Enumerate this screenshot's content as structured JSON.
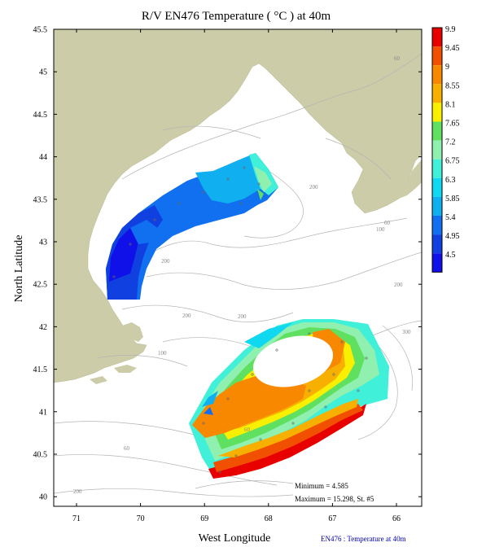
{
  "title": "R/V EN476 Temperature ( °C ) at 40m",
  "axes": {
    "xlabel": "West Longitude",
    "ylabel": "North Latitude",
    "x_ticks": [
      "71",
      "70",
      "69",
      "68",
      "67",
      "66"
    ],
    "y_ticks": [
      "45.5",
      "45",
      "44.5",
      "44",
      "43.5",
      "43",
      "42.5",
      "42",
      "41.5",
      "41",
      "40.5",
      "40"
    ]
  },
  "colorbar": {
    "labels": [
      "9.9",
      "9.45",
      "9",
      "8.55",
      "8.1",
      "7.65",
      "7.2",
      "6.75",
      "6.3",
      "5.85",
      "5.4",
      "4.95",
      "4.5"
    ],
    "colors": [
      "#e80000",
      "#f05000",
      "#f88800",
      "#f8b000",
      "#f8f000",
      "#60e060",
      "#90f0b0",
      "#40f0d8",
      "#10d8f0",
      "#10b0f0",
      "#1070f0",
      "#1040e0",
      "#1010e8"
    ]
  },
  "contour_labels": {
    "c60_ne": "60",
    "c200_a": "200",
    "c200_b": "200",
    "c200_c": "200",
    "c200_d": "200",
    "c100_a": "100",
    "c60_e": "60",
    "c100_b": "100",
    "c200_ne": "200",
    "c300": "300",
    "c60_center": "60",
    "c60_sw": "60",
    "c200_sw": "200"
  },
  "stats": {
    "minimum": "Minimum = 4.585",
    "maximum": "Maximum = 15.298, St. #5"
  },
  "credit": "EN476 : Temperature at 40m",
  "colors": {
    "land": "#cccca8",
    "contour": "#b4b4b4",
    "frame": "#000000"
  }
}
